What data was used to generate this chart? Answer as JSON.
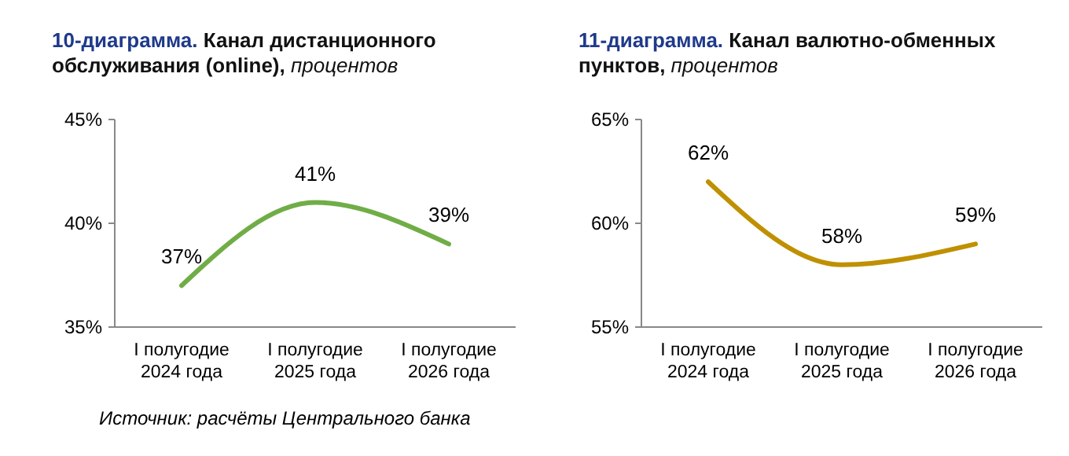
{
  "chart_data": [
    {
      "type": "line",
      "title": "10-диаграмма. Канал дистанционного обслуживания (online),",
      "subtitle": "процентов",
      "categories": [
        "I полугодие 2024 года",
        "I полугодие 2025 года",
        "I полугодие 2026 года"
      ],
      "series": [
        {
          "color": "#70ad47",
          "values": [
            37,
            41,
            39
          ],
          "value_labels": [
            "37%",
            "41%",
            "39%"
          ]
        }
      ],
      "ylim": [
        35,
        45
      ],
      "yticks": [
        {
          "value": 35,
          "label": "35%"
        },
        {
          "value": 40,
          "label": "40%"
        },
        {
          "value": 45,
          "label": "45%"
        }
      ],
      "grid": false,
      "marker": "none",
      "line_style": "solid",
      "annotations": [
        "Источник: расчёты Центрального банка"
      ]
    },
    {
      "type": "line",
      "title": "11-диаграмма. Канал валютно-обменных пунктов,",
      "subtitle": "процентов",
      "categories": [
        "I полугодие 2024 года",
        "I полугодие 2025 года",
        "I полугодие 2026 года"
      ],
      "series": [
        {
          "color": "#bf9000",
          "values": [
            62,
            58,
            59
          ],
          "value_labels": [
            "62%",
            "58%",
            "59%"
          ]
        }
      ],
      "ylim": [
        55,
        65
      ],
      "yticks": [
        {
          "value": 55,
          "label": "55%"
        },
        {
          "value": 60,
          "label": "60%"
        },
        {
          "value": 65,
          "label": "65%"
        }
      ],
      "grid": false,
      "marker": "none",
      "line_style": "solid"
    }
  ]
}
